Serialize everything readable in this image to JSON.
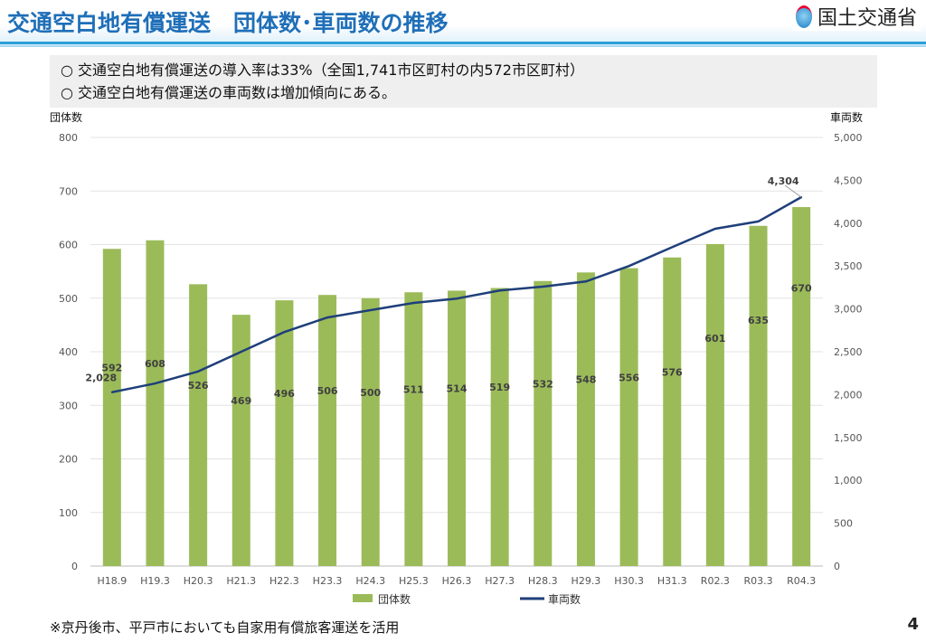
{
  "header": {
    "title": "交通空白地有償運送　団体数･車両数の推移",
    "logo_text": "国土交通省"
  },
  "notes": [
    "○ 交通空白地有償運送の導入率は33%（全国1,741市区町村の内572市区町村）",
    "○ 交通空白地有償運送の車両数は増加傾向にある。"
  ],
  "footer": {
    "note": "※京丹後市、平戸市においても自家用有償旅客運送を活用",
    "page": "4"
  },
  "chart_data": {
    "type": "bar+line",
    "categories": [
      "H18.9",
      "H19.3",
      "H20.3",
      "H21.3",
      "H22.3",
      "H23.3",
      "H24.3",
      "H25.3",
      "H26.3",
      "H27.3",
      "H28.3",
      "H29.3",
      "H30.3",
      "H31.3",
      "R02.3",
      "R03.3",
      "R04.3"
    ],
    "series": [
      {
        "name": "団体数",
        "type": "bar",
        "axis": "left",
        "color": "#9bbb59",
        "values": [
          592,
          608,
          526,
          469,
          496,
          506,
          500,
          511,
          514,
          519,
          532,
          548,
          556,
          576,
          601,
          635,
          670
        ]
      },
      {
        "name": "車両数",
        "type": "line",
        "axis": "right",
        "color": "#1f3f7a",
        "values": [
          2028,
          2130,
          2270,
          2500,
          2730,
          2900,
          2985,
          3070,
          3120,
          3215,
          3260,
          3320,
          3500,
          3720,
          3935,
          4020,
          4304
        ],
        "labeled": {
          "0": "2,028",
          "16": "4,304"
        }
      }
    ],
    "ylabel_left": "団体数",
    "ylabel_right": "車両数",
    "ylim_left": [
      0,
      800
    ],
    "yticks_left": [
      "0",
      "100",
      "200",
      "300",
      "400",
      "500",
      "600",
      "700",
      "800"
    ],
    "ylim_right": [
      0,
      5000
    ],
    "yticks_right": [
      "0",
      "500",
      "1,000",
      "1,500",
      "2,000",
      "2,500",
      "3,000",
      "3,500",
      "4,000",
      "4,500",
      "5,000"
    ],
    "grid": true,
    "legend": "bottom"
  }
}
